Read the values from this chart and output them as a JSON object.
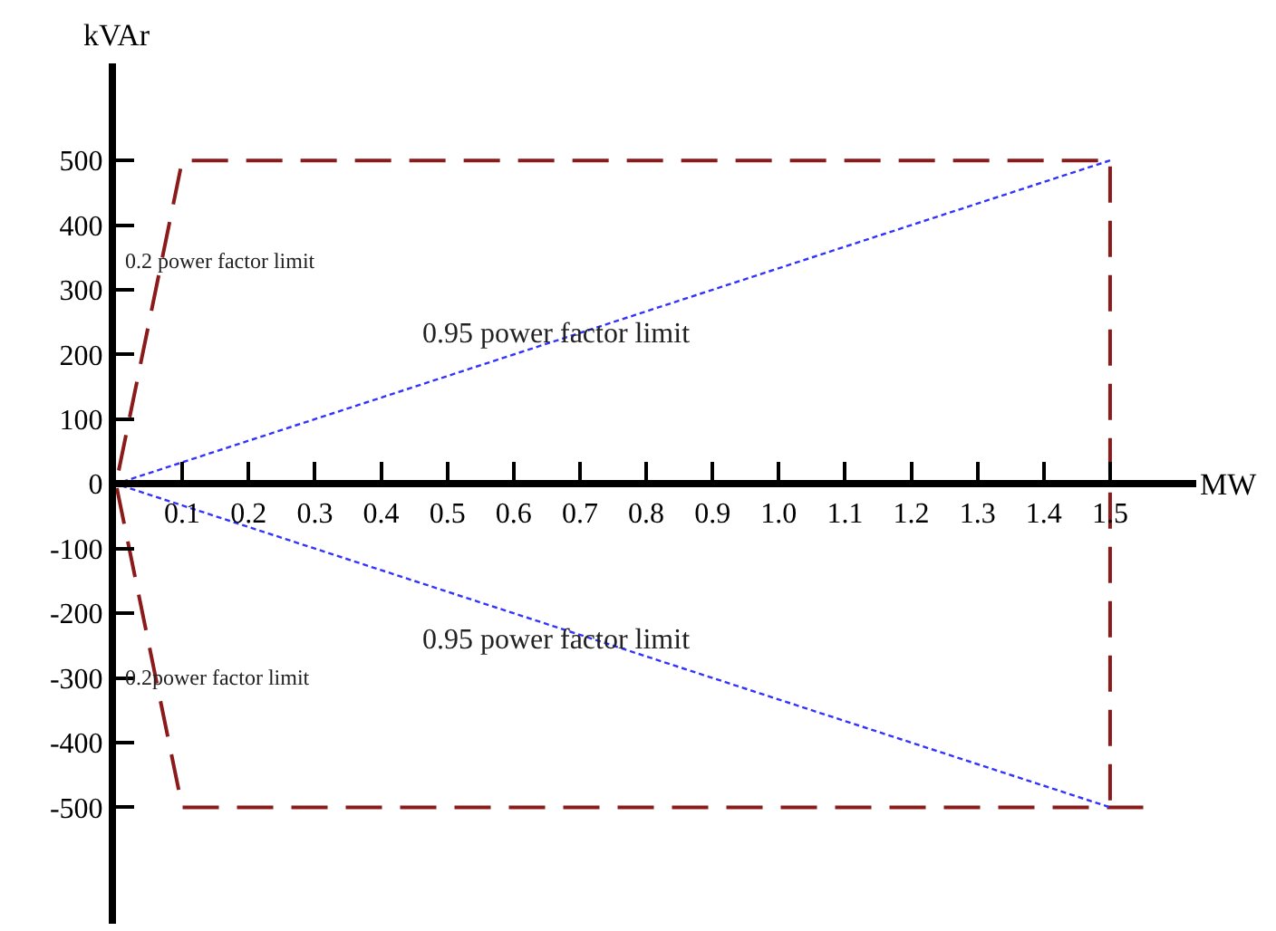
{
  "chart_data": {
    "type": "line",
    "xlabel": "MW",
    "ylabel": "kVAr",
    "xlim": [
      0,
      1.63
    ],
    "ylim": [
      -680,
      650
    ],
    "xticks": [
      0.1,
      0.2,
      0.3,
      0.4,
      0.5,
      0.6,
      0.7,
      0.8,
      0.9,
      {
        "value": 1,
        "label": "1.0"
      },
      1.1,
      1.2,
      1.3,
      1.4,
      1.5
    ],
    "yticks": [
      -500,
      -400,
      -300,
      -200,
      -100,
      0,
      100,
      200,
      300,
      400,
      500
    ],
    "grid": false,
    "marker": "none",
    "series": [
      {
        "color": "#8b1a1a",
        "line_style": "dashed",
        "x": [
          1.55,
          0.1,
          0,
          0.1,
          1.5,
          1.5
        ],
        "values": [
          -500,
          -500,
          0,
          500,
          500,
          -500
        ]
      },
      {
        "color": "#3333ff",
        "line_style": "dotted",
        "x": [
          1.5,
          0,
          1.5
        ],
        "values": [
          500,
          0,
          -500
        ]
      }
    ],
    "annotations": [
      "0.2 power factor limit",
      "0.95 power factor limit",
      "0.95 power factor limit",
      "0.2power factor limit"
    ]
  }
}
